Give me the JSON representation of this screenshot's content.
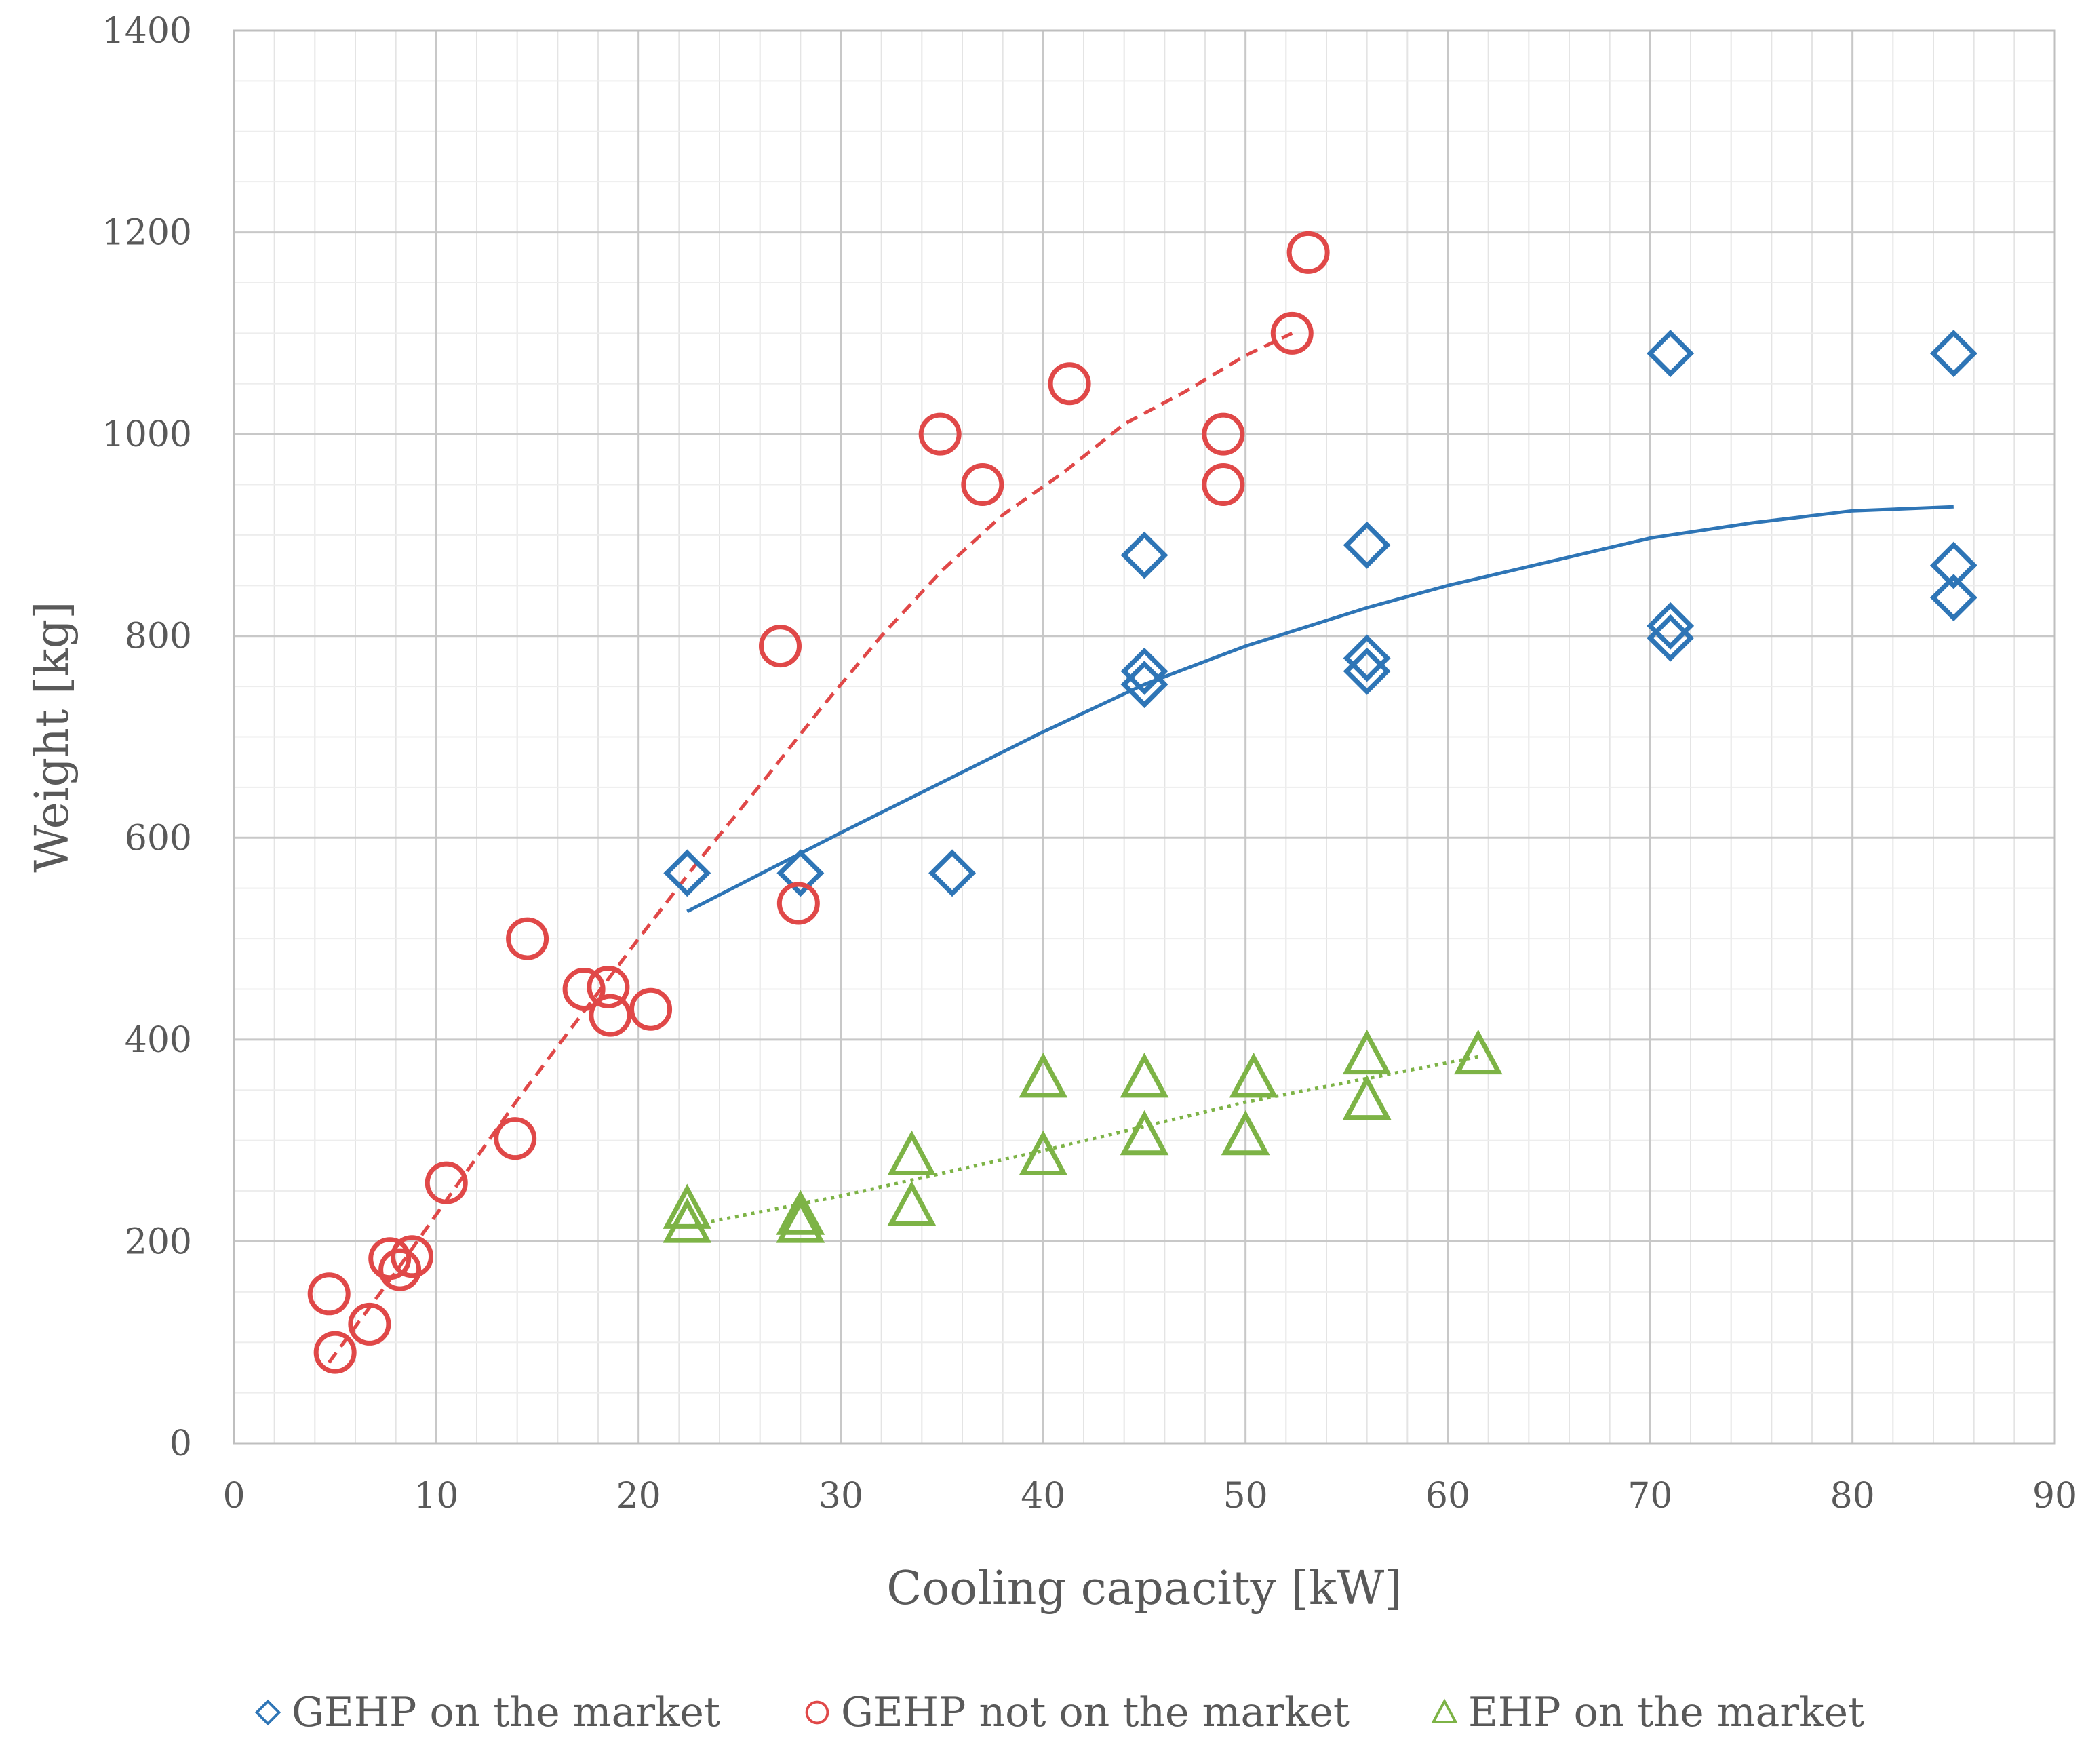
{
  "chart_data": {
    "type": "scatter",
    "title": "",
    "xlabel": "Cooling capacity [kW]",
    "ylabel": "Weight [kg]",
    "xlim": [
      0,
      90
    ],
    "ylim": [
      0,
      1400
    ],
    "xticks": [
      0,
      10,
      20,
      30,
      40,
      50,
      60,
      70,
      80,
      90
    ],
    "yticks": [
      0,
      200,
      400,
      600,
      800,
      1000,
      1200,
      1400
    ],
    "x_tick_labels": [
      "0",
      "10",
      "20",
      "30",
      "40",
      "50",
      "60",
      "70",
      "80",
      "90"
    ],
    "y_tick_labels": [
      "0",
      "200",
      "400",
      "600",
      "800",
      "1000",
      "1200",
      "1400"
    ],
    "grid": true,
    "legend_position": "bottom",
    "series": [
      {
        "name": "GEHP on the market",
        "marker": "diamond",
        "color": "#2E75B6",
        "points": [
          [
            22.4,
            565
          ],
          [
            28,
            565
          ],
          [
            35.5,
            565
          ],
          [
            45,
            880
          ],
          [
            45,
            765
          ],
          [
            45,
            752
          ],
          [
            56,
            890
          ],
          [
            56,
            778
          ],
          [
            56,
            765
          ],
          [
            71,
            1080
          ],
          [
            71,
            810
          ],
          [
            71,
            798
          ],
          [
            85,
            1080
          ],
          [
            85,
            870
          ],
          [
            85,
            838
          ]
        ]
      },
      {
        "name": "GEHP not on the market",
        "marker": "circle",
        "color": "#E04848",
        "points": [
          [
            4.7,
            148
          ],
          [
            5,
            90
          ],
          [
            6.7,
            118
          ],
          [
            7.7,
            183
          ],
          [
            8.2,
            172
          ],
          [
            8.8,
            185
          ],
          [
            10.5,
            258
          ],
          [
            13.9,
            302
          ],
          [
            14.5,
            500
          ],
          [
            17.3,
            450
          ],
          [
            18.5,
            452
          ],
          [
            18.6,
            424
          ],
          [
            20.6,
            430
          ],
          [
            27,
            790
          ],
          [
            27.9,
            535
          ],
          [
            34.9,
            1000
          ],
          [
            37,
            950
          ],
          [
            41.3,
            1050
          ],
          [
            48.9,
            1000
          ],
          [
            48.9,
            950
          ],
          [
            52.3,
            1100
          ],
          [
            53.1,
            1180
          ]
        ]
      },
      {
        "name": "EHP on the market",
        "marker": "triangle",
        "color": "#7DB346",
        "points": [
          [
            22.4,
            232
          ],
          [
            22.4,
            218
          ],
          [
            28,
            226
          ],
          [
            28,
            218
          ],
          [
            33.5,
            285
          ],
          [
            33.5,
            235
          ],
          [
            40,
            362
          ],
          [
            40,
            285
          ],
          [
            45,
            362
          ],
          [
            45,
            305
          ],
          [
            50.4,
            362
          ],
          [
            50,
            305
          ],
          [
            56,
            385
          ],
          [
            56,
            340
          ],
          [
            61.5,
            385
          ]
        ]
      }
    ],
    "trendlines": [
      {
        "series": "GEHP on the market",
        "style": "solid",
        "color": "#2E75B6",
        "points": [
          [
            22.4,
            527
          ],
          [
            30,
            605
          ],
          [
            40,
            705
          ],
          [
            45,
            752
          ],
          [
            50,
            790
          ],
          [
            56,
            828
          ],
          [
            60,
            850
          ],
          [
            70,
            897
          ],
          [
            75,
            912
          ],
          [
            80,
            924
          ],
          [
            85,
            928
          ]
        ]
      },
      {
        "series": "GEHP not on the market",
        "style": "dashed",
        "color": "#E04848",
        "points": [
          [
            4.7,
            80
          ],
          [
            8,
            170
          ],
          [
            11,
            255
          ],
          [
            14,
            340
          ],
          [
            17,
            420
          ],
          [
            20,
            500
          ],
          [
            23,
            578
          ],
          [
            26,
            652
          ],
          [
            29,
            728
          ],
          [
            32,
            800
          ],
          [
            35,
            865
          ],
          [
            38,
            920
          ],
          [
            41,
            962
          ],
          [
            44,
            1010
          ],
          [
            47,
            1042
          ],
          [
            50,
            1078
          ],
          [
            52.3,
            1100
          ]
        ]
      },
      {
        "series": "EHP on the market",
        "style": "dotted",
        "color": "#7DB346",
        "points": [
          [
            22.4,
            215
          ],
          [
            30,
            245
          ],
          [
            40,
            290
          ],
          [
            50,
            338
          ],
          [
            61.5,
            383
          ]
        ]
      }
    ]
  }
}
